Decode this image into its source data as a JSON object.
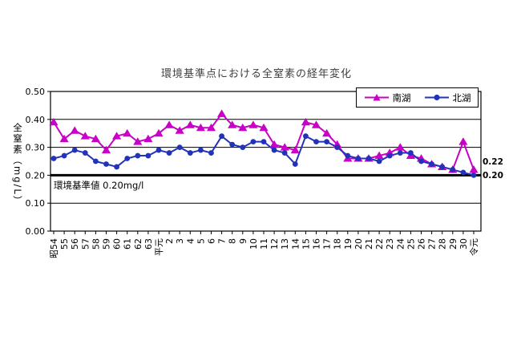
{
  "title": "環境基準点における全窒素の経年変化",
  "y_axis": {
    "title": "全窒素（mg/L）",
    "ticks": [
      "0.00",
      "0.10",
      "0.20",
      "0.30",
      "0.40",
      "0.50"
    ]
  },
  "annotation": "環境基準値 0.20mg/l",
  "chart_data": {
    "type": "line",
    "title": "環境基準点における全窒素の経年変化",
    "xlabel": "",
    "ylabel": "全窒素（mg/L）",
    "ylim": [
      0.0,
      0.5
    ],
    "y_tick_step": 0.1,
    "grid": true,
    "legend_position": "top-right",
    "reference_line": {
      "value": 0.2,
      "label": "環境基準値 0.20mg/l"
    },
    "categories": [
      "昭54",
      "55",
      "56",
      "57",
      "58",
      "59",
      "60",
      "61",
      "62",
      "63",
      "平元",
      "2",
      "3",
      "4",
      "5",
      "6",
      "7",
      "8",
      "9",
      "10",
      "11",
      "12",
      "13",
      "14",
      "15",
      "16",
      "17",
      "18",
      "19",
      "20",
      "21",
      "22",
      "23",
      "24",
      "25",
      "26",
      "27",
      "28",
      "29",
      "30",
      "令元"
    ],
    "series": [
      {
        "name": "南湖",
        "color": "#c800c8",
        "marker": "triangle",
        "end_label": "0.22",
        "values": [
          0.39,
          0.33,
          0.36,
          0.34,
          0.33,
          0.29,
          0.34,
          0.35,
          0.32,
          0.33,
          0.35,
          0.38,
          0.36,
          0.38,
          0.37,
          0.37,
          0.42,
          0.38,
          0.37,
          0.38,
          0.37,
          0.31,
          0.3,
          0.29,
          0.39,
          0.38,
          0.35,
          0.31,
          0.26,
          0.26,
          0.26,
          0.27,
          0.28,
          0.3,
          0.27,
          0.26,
          0.24,
          0.23,
          0.22,
          0.32,
          0.22
        ]
      },
      {
        "name": "北湖",
        "color": "#2233bb",
        "marker": "circle",
        "end_label": "0.20",
        "values": [
          0.26,
          0.27,
          0.29,
          0.28,
          0.25,
          0.24,
          0.23,
          0.26,
          0.27,
          0.27,
          0.29,
          0.28,
          0.3,
          0.28,
          0.29,
          0.28,
          0.34,
          0.31,
          0.3,
          0.32,
          0.32,
          0.29,
          0.28,
          0.24,
          0.34,
          0.32,
          0.32,
          0.3,
          0.27,
          0.26,
          0.26,
          0.25,
          0.27,
          0.28,
          0.28,
          0.25,
          0.24,
          0.23,
          0.22,
          0.21,
          0.2
        ]
      }
    ]
  }
}
